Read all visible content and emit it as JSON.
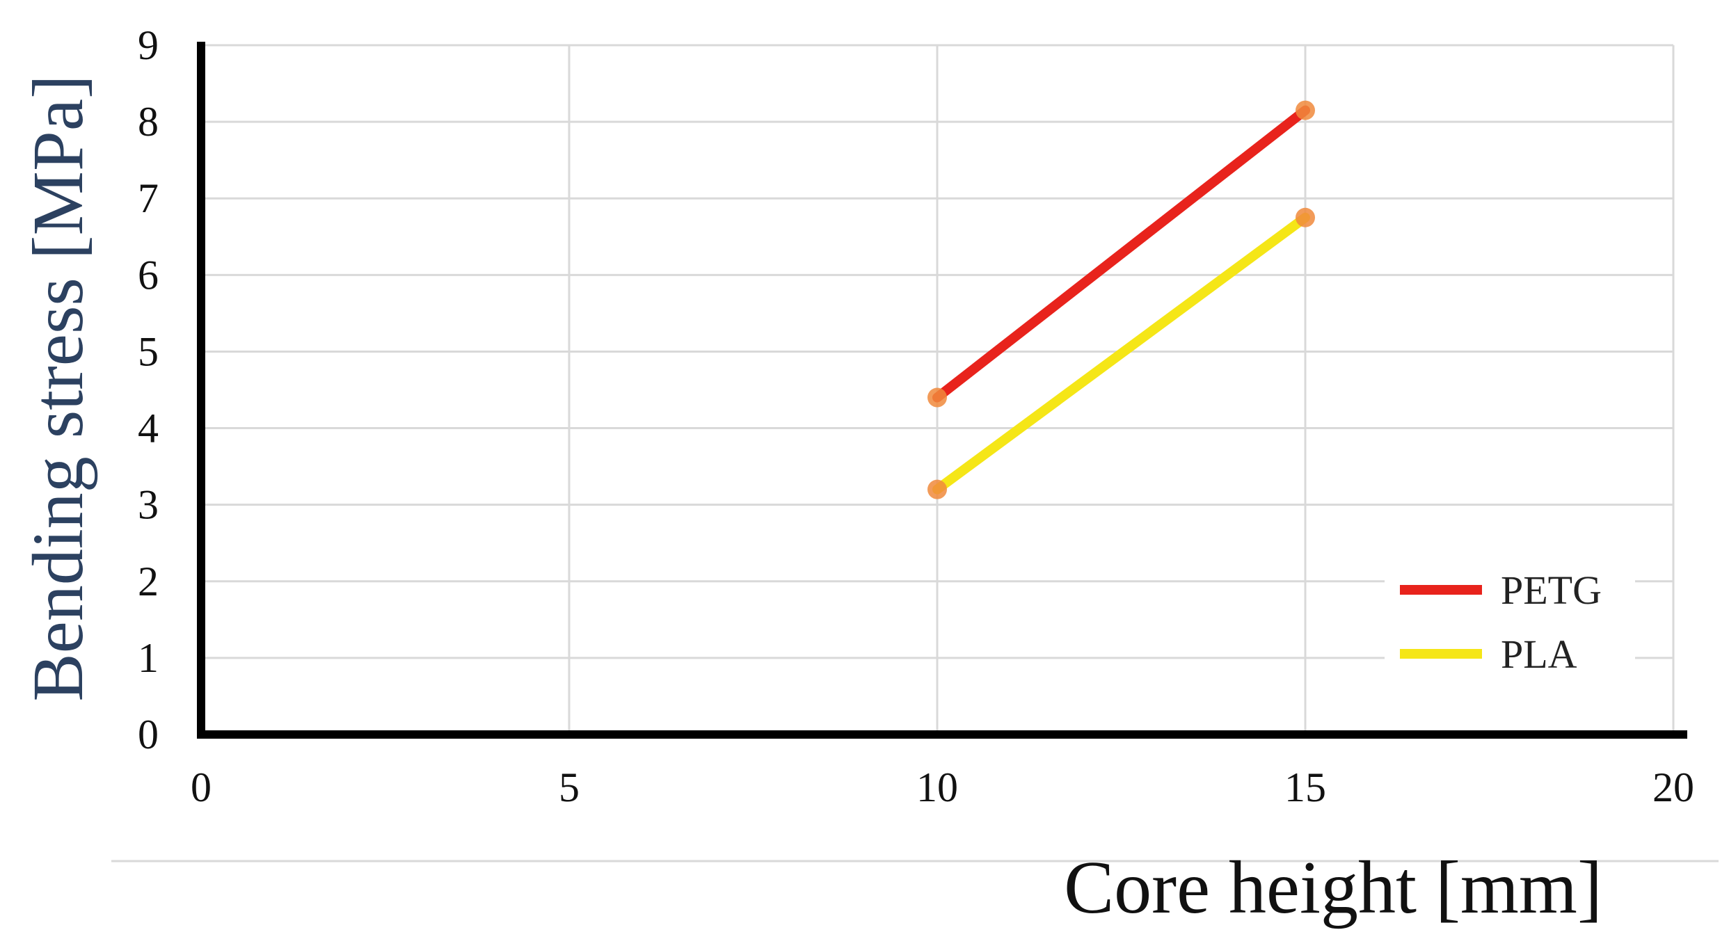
{
  "chart_data": {
    "type": "line",
    "xlabel": "Core height [mm]",
    "ylabel": "Bending stress [MPa]",
    "xlim": [
      0,
      20
    ],
    "ylim": [
      0,
      9
    ],
    "xticks": [
      "0",
      "5",
      "10",
      "15",
      "20"
    ],
    "yticks": [
      "0",
      "1",
      "2",
      "3",
      "4",
      "5",
      "6",
      "7",
      "8",
      "9"
    ],
    "grid": true,
    "legend_position": "bottom-right",
    "series": [
      {
        "name": "PETG",
        "color": "#e8231c",
        "x": [
          10,
          15
        ],
        "y": [
          4.4,
          8.15
        ]
      },
      {
        "name": "PLA",
        "color": "#f5e617",
        "x": [
          10,
          15
        ],
        "y": [
          3.2,
          6.75
        ]
      }
    ],
    "marker_color": "#f08a3c"
  }
}
